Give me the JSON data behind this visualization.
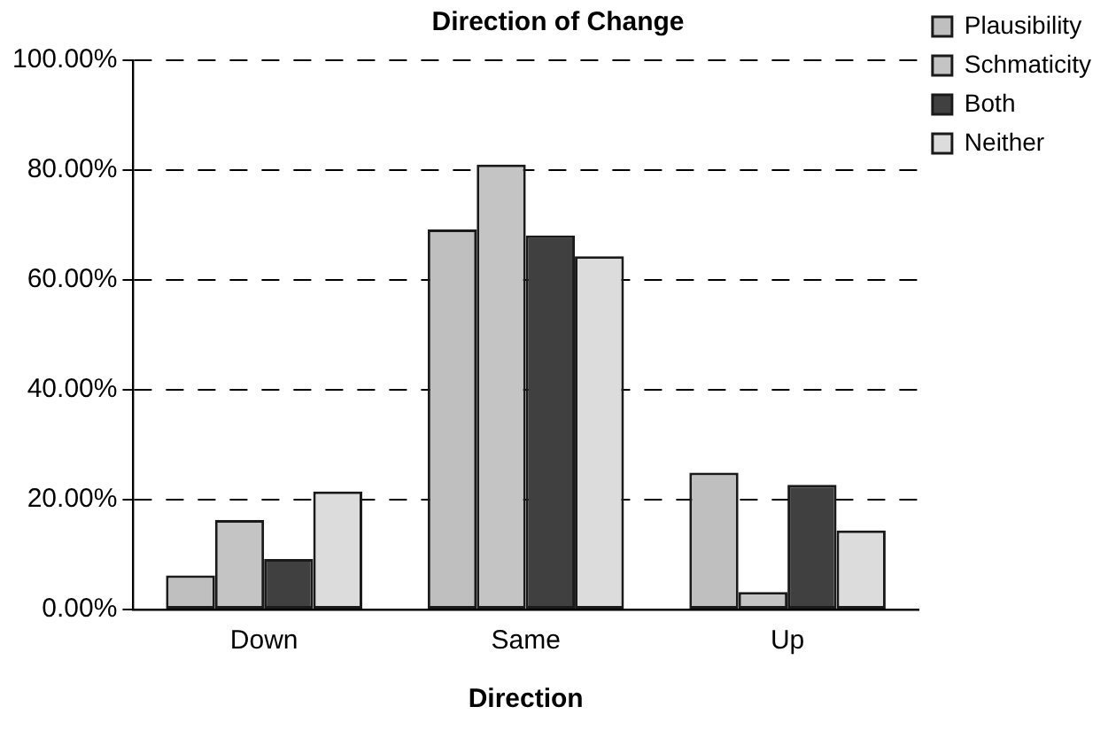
{
  "chart_data": {
    "type": "bar",
    "title": "Direction of Change",
    "xlabel": "Direction",
    "categories": [
      "Down",
      "Same",
      "Up"
    ],
    "series": [
      {
        "name": "Plausibility",
        "color": "#bfbfbf",
        "values": [
          6.2,
          69.2,
          24.9
        ]
      },
      {
        "name": "Schmaticity",
        "color": "#c4c4c4",
        "values": [
          16.3,
          81,
          3.2
        ]
      },
      {
        "name": "Both",
        "color": "#404040",
        "values": [
          9.2,
          68.1,
          22.7
        ]
      },
      {
        "name": "Neither",
        "color": "#dcdcdc",
        "values": [
          21.5,
          64.3,
          14.4
        ]
      }
    ],
    "ylim": [
      0,
      100
    ],
    "yticks": [
      {
        "value": 0,
        "label": "0.00%"
      },
      {
        "value": 20,
        "label": "20.00%"
      },
      {
        "value": 40,
        "label": "40.00%"
      },
      {
        "value": 60,
        "label": "60.00%"
      },
      {
        "value": 80,
        "label": "80.00%"
      },
      {
        "value": 100,
        "label": "100.00%"
      }
    ],
    "grid": "y",
    "legend": "top right"
  }
}
